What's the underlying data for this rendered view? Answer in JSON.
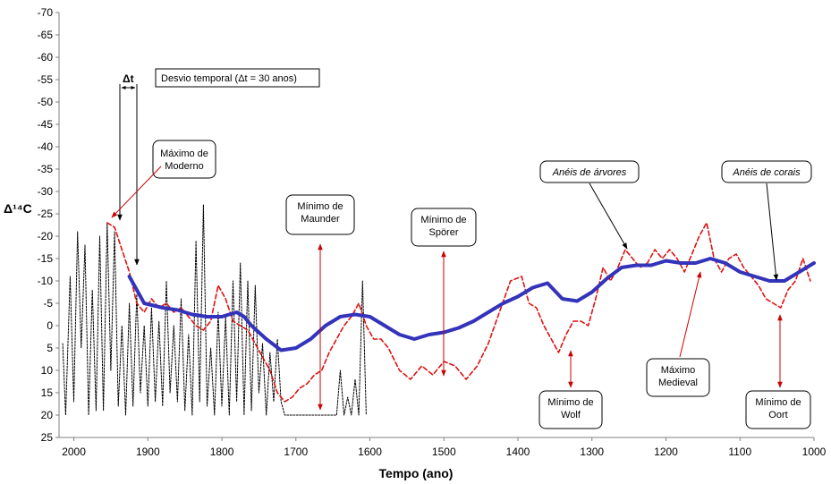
{
  "chart_data": {
    "type": "line",
    "xlabel": "Tempo (ano)",
    "ylabel": "Δ¹⁴C",
    "xlim": [
      2020,
      1000
    ],
    "ylim": [
      -70,
      25
    ],
    "x_ticks": [
      2000,
      1900,
      1800,
      1700,
      1600,
      1500,
      1400,
      1300,
      1200,
      1100,
      1000
    ],
    "y_ticks": [
      -70,
      -65,
      -60,
      -55,
      -50,
      -45,
      -40,
      -35,
      -30,
      -25,
      -20,
      -15,
      -10,
      -5,
      0,
      5,
      10,
      15,
      20,
      25
    ],
    "grid": false,
    "legend": "none",
    "series": [
      {
        "style": "solid-thick",
        "color": "#3333bb",
        "x": [
          1925,
          1905,
          1880,
          1860,
          1840,
          1820,
          1800,
          1780,
          1770,
          1760,
          1740,
          1720,
          1700,
          1680,
          1660,
          1640,
          1620,
          1600,
          1580,
          1560,
          1540,
          1520,
          1500,
          1480,
          1460,
          1440,
          1420,
          1400,
          1380,
          1360,
          1340,
          1320,
          1300,
          1280,
          1260,
          1240,
          1220,
          1200,
          1180,
          1160,
          1140,
          1120,
          1100,
          1080,
          1060,
          1040,
          1020,
          1000
        ],
        "y": [
          -11,
          -5,
          -4,
          -3.5,
          -2.5,
          -2,
          -2,
          -3,
          -2,
          0,
          3,
          5.5,
          5,
          3,
          0,
          -2,
          -2.5,
          -2,
          0,
          2,
          3,
          2,
          1.5,
          0.5,
          -1,
          -3,
          -5,
          -6.5,
          -8.5,
          -9.5,
          -6,
          -5.5,
          -7.5,
          -10.5,
          -13,
          -13.5,
          -13.5,
          -14.5,
          -14,
          -14,
          -15,
          -14,
          -12,
          -11,
          -10,
          -10,
          -12,
          -14
        ]
      },
      {
        "style": "dashed",
        "color": "#dd1111",
        "x": [
          1955,
          1945,
          1935,
          1925,
          1915,
          1905,
          1895,
          1885,
          1875,
          1865,
          1855,
          1845,
          1835,
          1825,
          1815,
          1805,
          1795,
          1785,
          1775,
          1765,
          1755,
          1745,
          1735,
          1725,
          1715,
          1705,
          1695,
          1685,
          1675,
          1665,
          1655,
          1645,
          1635,
          1625,
          1615,
          1605,
          1595,
          1585,
          1575,
          1560,
          1545,
          1530,
          1515,
          1500,
          1485,
          1470,
          1455,
          1440,
          1425,
          1410,
          1395,
          1385,
          1375,
          1365,
          1355,
          1345,
          1335,
          1325,
          1315,
          1305,
          1295,
          1285,
          1275,
          1265,
          1255,
          1245,
          1235,
          1225,
          1215,
          1205,
          1195,
          1185,
          1175,
          1165,
          1155,
          1145,
          1135,
          1125,
          1115,
          1105,
          1095,
          1085,
          1075,
          1065,
          1055,
          1045,
          1035,
          1025,
          1015,
          1005
        ],
        "y": [
          -23,
          -22,
          -17,
          -12,
          -5,
          -3,
          -6,
          -4,
          -5,
          -3,
          -4,
          -2,
          0,
          1,
          -1,
          -9,
          -6,
          -1,
          0,
          1,
          4,
          7,
          10,
          15,
          17,
          16,
          14,
          13,
          11,
          10,
          6,
          3,
          0,
          -2,
          -5,
          0,
          3,
          3,
          5,
          10,
          12,
          9,
          11,
          8,
          9,
          12,
          9,
          4,
          -3,
          -10,
          -11,
          -5,
          -4,
          0,
          3,
          6,
          2,
          -1,
          -1,
          0,
          -6,
          -13,
          -10,
          -13,
          -17,
          -15,
          -13,
          -14,
          -17,
          -15,
          -17,
          -15,
          -12,
          -16,
          -20,
          -23,
          -15,
          -12,
          -15,
          -16,
          -13,
          -11,
          -9,
          -6,
          -5,
          -4,
          -8,
          -10,
          -15,
          -10
        ]
      },
      {
        "style": "dotted-black",
        "color": "#000000",
        "x": [
          2015,
          2011,
          2005,
          2000,
          1995,
          1990,
          1985,
          1980,
          1975,
          1970,
          1965,
          1960,
          1955,
          1950,
          1945,
          1940,
          1935,
          1930,
          1925,
          1920,
          1915,
          1910,
          1905,
          1900,
          1895,
          1890,
          1885,
          1880,
          1875,
          1870,
          1865,
          1860,
          1855,
          1850,
          1845,
          1840,
          1835,
          1830,
          1825,
          1820,
          1815,
          1810,
          1805,
          1800,
          1795,
          1790,
          1785,
          1780,
          1775,
          1770,
          1765,
          1760,
          1755,
          1750,
          1745,
          1740,
          1735,
          1730,
          1725,
          1720,
          1715,
          1710,
          1705,
          1700,
          1690,
          1680,
          1670,
          1660,
          1650,
          1645,
          1640,
          1635,
          1630,
          1625,
          1620,
          1615,
          1610,
          1605
        ],
        "y": [
          4,
          20,
          -11,
          17,
          -21,
          5,
          -18,
          20,
          -8,
          19,
          -20,
          19,
          -23,
          10,
          -21,
          18,
          0,
          20,
          -5,
          18,
          -7,
          15,
          0,
          18,
          -4,
          17,
          -1,
          18,
          -10,
          15,
          0,
          17,
          -6,
          19,
          2,
          20,
          -19,
          17,
          -27,
          18,
          5,
          20,
          -3,
          18,
          -2,
          20,
          -10,
          17,
          -14,
          20,
          -10,
          19,
          -9,
          15,
          4,
          20,
          6,
          17,
          3,
          17,
          20,
          20,
          20,
          20,
          20,
          20,
          20,
          20,
          20,
          20,
          10,
          20,
          16,
          20,
          12,
          20,
          -10,
          20
        ]
      }
    ],
    "annotations": {
      "desvio_title": "Desvio temporal  (Δt = 30 anos)",
      "delta_t": "Δt",
      "max_moderno": [
        "Máximo de",
        "Moderno"
      ],
      "min_maunder": [
        "Mínimo de",
        "Maunder"
      ],
      "min_sporer": [
        "Mínimo de",
        "Spörer"
      ],
      "aneis_arvores": "Anéis de árvores",
      "aneis_corais": "Anéis de corais",
      "min_wolf": [
        "Mínimo de",
        "Wolf"
      ],
      "max_medieval": [
        "Máximo",
        "Medieval"
      ],
      "min_oort": [
        "Mínimo de",
        "Oort"
      ]
    }
  }
}
